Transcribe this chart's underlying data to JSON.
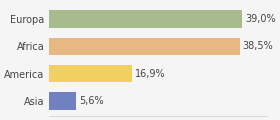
{
  "categories": [
    "Asia",
    "America",
    "Africa",
    "Europa"
  ],
  "values": [
    5.6,
    16.9,
    38.5,
    39.0
  ],
  "labels": [
    "5,6%",
    "16,9%",
    "38,5%",
    "39,0%"
  ],
  "bar_colors": [
    "#7080c0",
    "#f0d060",
    "#e8b882",
    "#a8bb8c"
  ],
  "background_color": "#f5f5f5",
  "xlim": [
    0,
    44
  ],
  "ylabel_fontsize": 7,
  "label_fontsize": 7
}
